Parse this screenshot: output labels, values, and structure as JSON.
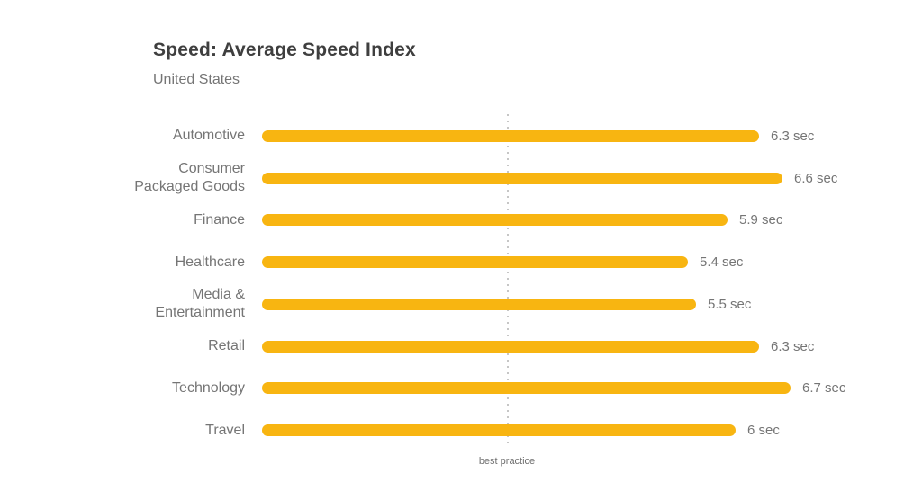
{
  "chart": {
    "title": "Speed: Average Speed Index",
    "subtitle": "United States",
    "bar_color": "#F8B511",
    "text_color": "#757575",
    "title_color": "#3F3F3F",
    "line_color": "#C6C6C6"
  },
  "chart_data": {
    "type": "bar",
    "orientation": "horizontal",
    "title": "Speed: Average Speed Index",
    "subtitle": "United States",
    "unit": "sec",
    "categories": [
      "Automotive",
      "Consumer Packaged Goods",
      "Finance",
      "Healthcare",
      "Media & Entertainment",
      "Retail",
      "Technology",
      "Travel"
    ],
    "category_lines": [
      [
        "Automotive"
      ],
      [
        "Consumer",
        "Packaged Goods"
      ],
      [
        "Finance"
      ],
      [
        "Healthcare"
      ],
      [
        "Media &",
        "Entertainment"
      ],
      [
        "Retail"
      ],
      [
        "Technology"
      ],
      [
        "Travel"
      ]
    ],
    "values": [
      6.3,
      6.6,
      5.9,
      5.4,
      5.5,
      6.3,
      6.7,
      6.0
    ],
    "value_labels": [
      "6.3 sec",
      "6.6 sec",
      "5.9 sec",
      "5.4 sec",
      "5.5 sec",
      "6.3 sec",
      "6.7 sec",
      "6 sec"
    ],
    "xlim": [
      0,
      8.4
    ],
    "grid": false,
    "legend": "none",
    "annotations": [
      {
        "label": "best practice",
        "x": 3.1
      }
    ]
  }
}
